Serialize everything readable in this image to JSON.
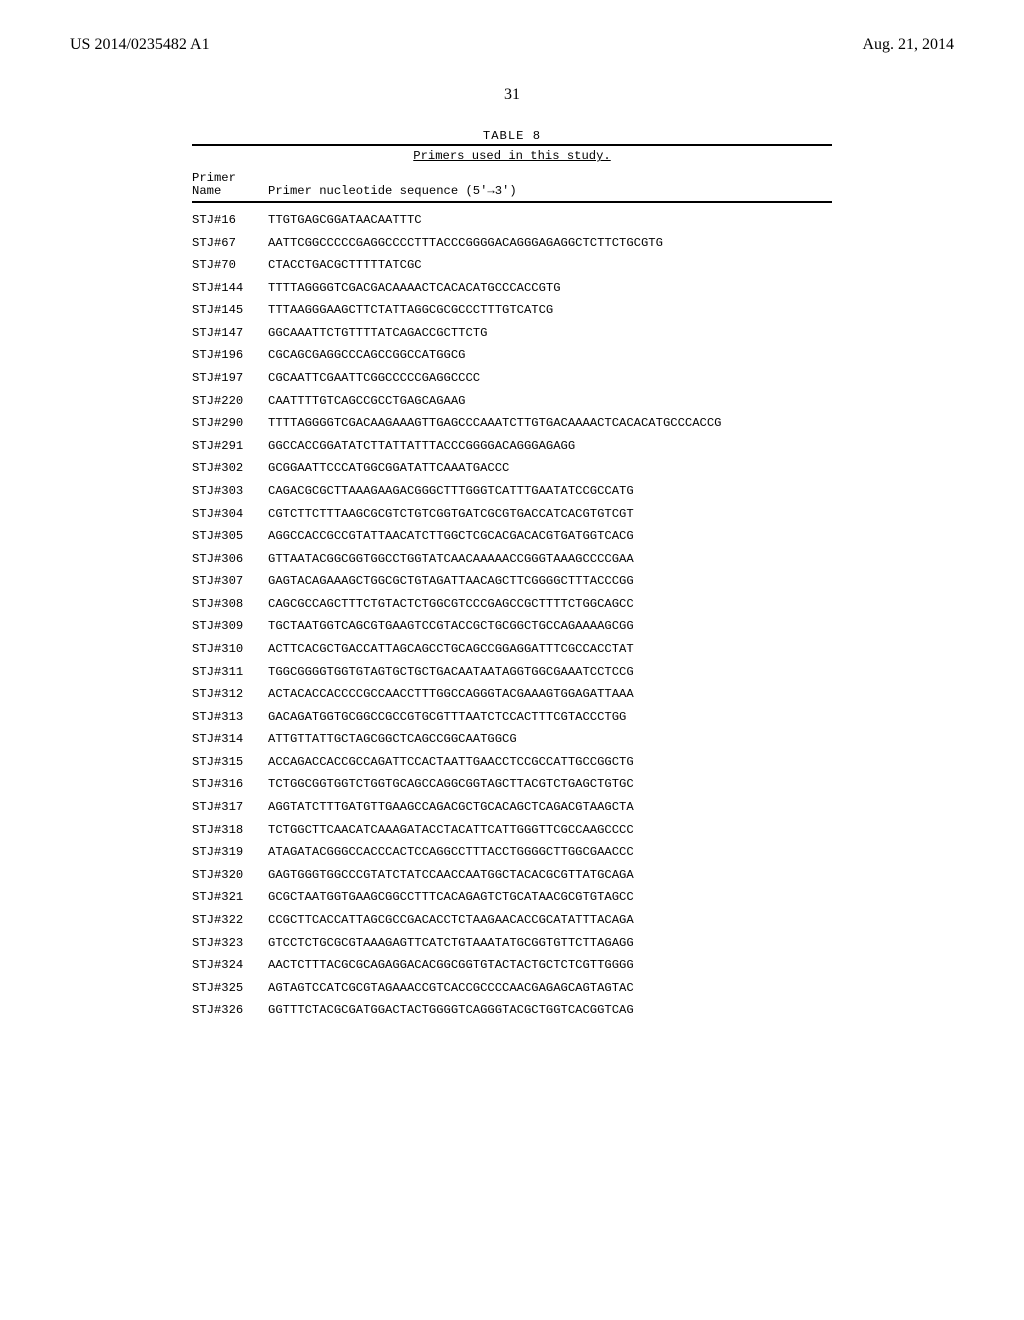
{
  "header": {
    "left": "US 2014/0235482 A1",
    "right": "Aug. 21, 2014"
  },
  "page_number": "31",
  "table": {
    "caption": "TABLE 8",
    "subcaption": "Primers used in this study.",
    "col_header_l1_c1": "Primer",
    "col_header_l2_c1": "Name",
    "col_header_l2_c2": "Primer nucleotide sequence (5'→3')",
    "rows": [
      {
        "name": "STJ#16",
        "seq": "TTGTGAGCGGATAACAATTTC"
      },
      {
        "name": "STJ#67",
        "seq": "AATTCGGCCCCCGAGGCCCCTTTACCCGGGGACAGGGAGAGGCTCTTCTGCGTG"
      },
      {
        "name": "STJ#70",
        "seq": "CTACCTGACGCTTTTTATCGC"
      },
      {
        "name": "STJ#144",
        "seq": "TTTTAGGGGTCGACGACAAAACTCACACATGCCCACCGTG"
      },
      {
        "name": "STJ#145",
        "seq": "TTTAAGGGAAGCTTCTATTAGGCGCGCCCTTTGTCATCG"
      },
      {
        "name": "STJ#147",
        "seq": "GGCAAATTCTGTTTTATCAGACCGCTTCTG"
      },
      {
        "name": "STJ#196",
        "seq": "CGCAGCGAGGCCCAGCCGGCCATGGCG"
      },
      {
        "name": "STJ#197",
        "seq": "CGCAATTCGAATTCGGCCCCCGAGGCCCC"
      },
      {
        "name": "STJ#220",
        "seq": "CAATTTTGTCAGCCGCCTGAGCAGAAG"
      },
      {
        "name": "STJ#290",
        "seq": "TTTTAGGGGTCGACAAGAAAGTTGAGCCCAAATCTTGTGACAAAACTCACACATGCCCACCG"
      },
      {
        "name": "STJ#291",
        "seq": "GGCCACCGGATATCTTATTATTTACCCGGGGACAGGGAGAGG"
      },
      {
        "name": "STJ#302",
        "seq": "GCGGAATTCCCATGGCGGATATTCAAATGACCC"
      },
      {
        "name": "STJ#303",
        "seq": "CAGACGCGCTTAAAGAAGACGGGCTTTGGGTCATTTGAATATCCGCCATG"
      },
      {
        "name": "STJ#304",
        "seq": "CGTCTTCTTTAAGCGCGTCTGTCGGTGATCGCGTGACCATCACGTGTCGT"
      },
      {
        "name": "STJ#305",
        "seq": "AGGCCACCGCCGTATTAACATCTTGGCTCGCACGACACGTGATGGTCACG"
      },
      {
        "name": "STJ#306",
        "seq": "GTTAATACGGCGGTGGCCTGGTATCAACAAAAACCGGGTAAAGCCCCGAA"
      },
      {
        "name": "STJ#307",
        "seq": "GAGTACAGAAAGCTGGCGCTGTAGATTAACAGCTTCGGGGCTTTACCCGG"
      },
      {
        "name": "STJ#308",
        "seq": "CAGCGCCAGCTTTCTGTACTCTGGCGTCCCGAGCCGCTTTTCTGGCAGCC"
      },
      {
        "name": "STJ#309",
        "seq": "TGCTAATGGTCAGCGTGAAGTCCGTACCGCTGCGGCTGCCAGAAAAGCGG"
      },
      {
        "name": "STJ#310",
        "seq": "ACTTCACGCTGACCATTAGCAGCCTGCAGCCGGAGGATTTCGCCACCTAT"
      },
      {
        "name": "STJ#311",
        "seq": "TGGCGGGGTGGTGTAGTGCTGCTGACAATAATAGGTGGCGAAATCCTCCG"
      },
      {
        "name": "STJ#312",
        "seq": "ACTACACCACCCCGCCAACCTTTGGCCAGGGTACGAAAGTGGAGATTAAA"
      },
      {
        "name": "STJ#313",
        "seq": "GACAGATGGTGCGGCCGCCGTGCGTTTAATCTCCACTTTCGTACCCTGG"
      },
      {
        "name": "STJ#314",
        "seq": "ATTGTTATTGCTAGCGGCTCAGCCGGCAATGGCG"
      },
      {
        "name": "STJ#315",
        "seq": "ACCAGACCACCGCCAGATTCCACTAATTGAACCTCCGCCATTGCCGGCTG"
      },
      {
        "name": "STJ#316",
        "seq": "TCTGGCGGTGGTCTGGTGCAGCCAGGCGGTAGCTTACGTCTGAGCTGTGC"
      },
      {
        "name": "STJ#317",
        "seq": "AGGTATCTTTGATGTTGAAGCCAGACGCTGCACAGCTCAGACGTAAGCTA"
      },
      {
        "name": "STJ#318",
        "seq": "TCTGGCTTCAACATCAAAGATACCTACATTCATTGGGTTCGCCAAGCCCC"
      },
      {
        "name": "STJ#319",
        "seq": "ATAGATACGGGCCACCCACTCCAGGCCTTTACCTGGGGCTTGGCGAACCC"
      },
      {
        "name": "STJ#320",
        "seq": "GAGTGGGTGGCCCGTATCTATCCAACCAATGGCTACACGCGTTATGCAGA"
      },
      {
        "name": "STJ#321",
        "seq": "GCGCTAATGGTGAAGCGGCCTTTCACAGAGTCTGCATAACGCGTGTAGCC"
      },
      {
        "name": "STJ#322",
        "seq": "CCGCTTCACCATTAGCGCCGACACCTCTAAGAACACCGCATATTTACAGA"
      },
      {
        "name": "STJ#323",
        "seq": "GTCCTCTGCGCGTAAAGAGTTCATCTGTAAATATGCGGTGTTCTTAGAGG"
      },
      {
        "name": "STJ#324",
        "seq": "AACTCTTTACGCGCAGAGGACACGGCGGTGTACTACTGCTCTCGTTGGGG"
      },
      {
        "name": "STJ#325",
        "seq": "AGTAGTCCATCGCGTAGAAACCGTCACCGCCCCAACGAGAGCAGTAGTAC"
      },
      {
        "name": "STJ#326",
        "seq": "GGTTTCTACGCGATGGACTACTGGGGTCAGGGTACGCTGGTCACGGTCAG"
      }
    ]
  }
}
